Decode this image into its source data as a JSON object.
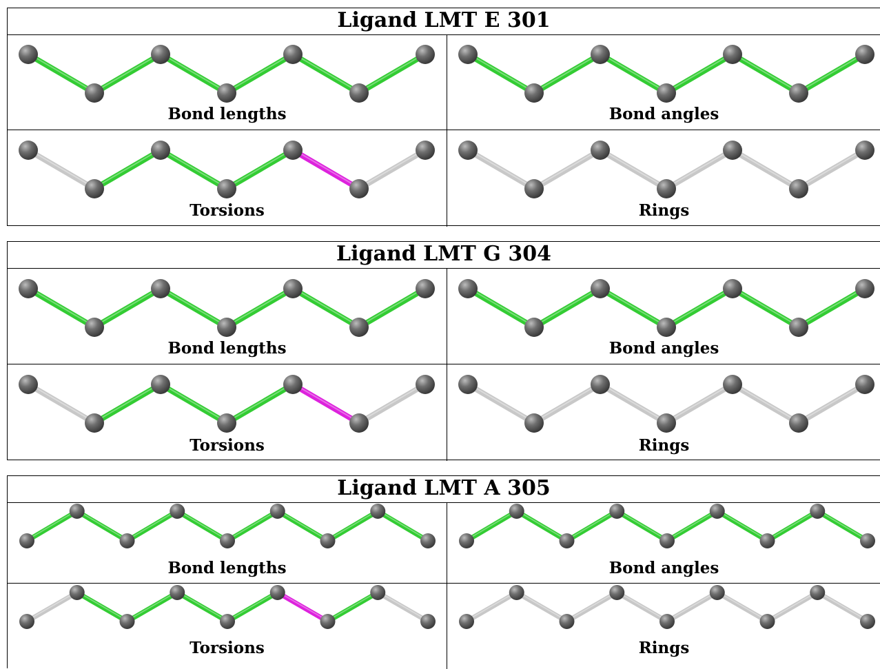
{
  "colors": {
    "pass": "#33cc33",
    "fail": "#dd22dd",
    "neutral": "#c8c8c8",
    "atom": "#6f6f6f"
  },
  "panels": [
    {
      "title": "Ligand LMT E 301",
      "atom_count": 7,
      "cells": [
        {
          "label": "Bond lengths",
          "bonds": [
            "pass",
            "pass",
            "pass",
            "pass",
            "pass",
            "pass"
          ]
        },
        {
          "label": "Bond angles",
          "bonds": [
            "pass",
            "pass",
            "pass",
            "pass",
            "pass",
            "pass"
          ]
        },
        {
          "label": "Torsions",
          "bonds": [
            "neutral",
            "pass",
            "pass",
            "pass",
            "fail",
            "neutral"
          ]
        },
        {
          "label": "Rings",
          "bonds": [
            "neutral",
            "neutral",
            "neutral",
            "neutral",
            "neutral",
            "neutral"
          ]
        }
      ]
    },
    {
      "title": "Ligand LMT G 304",
      "atom_count": 7,
      "cells": [
        {
          "label": "Bond lengths",
          "bonds": [
            "pass",
            "pass",
            "pass",
            "pass",
            "pass",
            "pass"
          ]
        },
        {
          "label": "Bond angles",
          "bonds": [
            "pass",
            "pass",
            "pass",
            "pass",
            "pass",
            "pass"
          ]
        },
        {
          "label": "Torsions",
          "bonds": [
            "neutral",
            "pass",
            "pass",
            "pass",
            "fail",
            "neutral"
          ]
        },
        {
          "label": "Rings",
          "bonds": [
            "neutral",
            "neutral",
            "neutral",
            "neutral",
            "neutral",
            "neutral"
          ]
        }
      ]
    },
    {
      "title": "Ligand LMT A 305",
      "atom_count": 9,
      "cells": [
        {
          "label": "Bond lengths",
          "bonds": [
            "pass",
            "pass",
            "pass",
            "pass",
            "pass",
            "pass",
            "pass",
            "pass"
          ]
        },
        {
          "label": "Bond angles",
          "bonds": [
            "pass",
            "pass",
            "pass",
            "pass",
            "pass",
            "pass",
            "pass",
            "pass"
          ]
        },
        {
          "label": "Torsions",
          "bonds": [
            "neutral",
            "pass",
            "pass",
            "pass",
            "pass",
            "fail",
            "pass",
            "neutral"
          ]
        },
        {
          "label": "Rings",
          "bonds": [
            "neutral",
            "neutral",
            "neutral",
            "neutral",
            "neutral",
            "neutral",
            "neutral",
            "neutral"
          ]
        }
      ]
    }
  ]
}
